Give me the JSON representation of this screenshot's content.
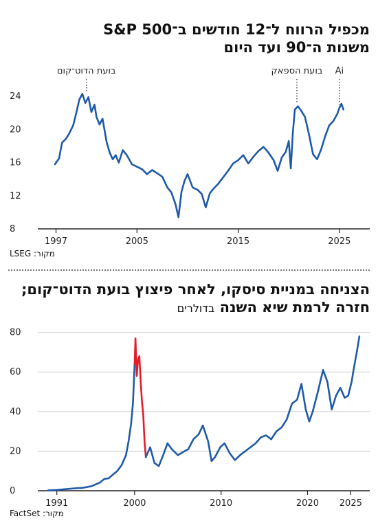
{
  "chart_data": [
    {
      "type": "line",
      "title": "מכפיל הרווח ל־12 חודשים ב־S&P 500",
      "subtitle": "משנות ה־90 ועד היום",
      "source": "מקור: LSEG",
      "x_ticks": [
        "1997",
        "2005",
        "2015",
        "2025"
      ],
      "y_ticks": [
        "8",
        "12",
        "16",
        "20",
        "24"
      ],
      "xlim": [
        1995.2,
        2028.0
      ],
      "ylim": [
        8,
        26.5
      ],
      "grid": false,
      "annotations": [
        {
          "label": "בועת הדוט־קום",
          "x": 2000.0,
          "y": 24.6
        },
        {
          "label": "בועת הספאק",
          "x": 2020.8,
          "y": 23.2
        },
        {
          "label": "Ai",
          "x": 2025.0,
          "y": 23.0
        }
      ],
      "series": [
        {
          "color": "#1f5aa6",
          "x": [
            1996.9,
            1997.3,
            1997.6,
            1998.0,
            1998.3,
            1998.7,
            1999.0,
            1999.3,
            1999.6,
            1999.9,
            2000.2,
            2000.5,
            2000.8,
            2001.0,
            2001.3,
            2001.6,
            2002.0,
            2002.3,
            2002.6,
            2002.9,
            2003.2,
            2003.6,
            2004.0,
            2004.5,
            2005.0,
            2005.5,
            2006.0,
            2006.5,
            2007.0,
            2007.5,
            2008.0,
            2008.4,
            2008.8,
            2009.1,
            2009.4,
            2009.7,
            2010.0,
            2010.5,
            2011.0,
            2011.4,
            2011.8,
            2012.2,
            2012.6,
            2013.0,
            2013.5,
            2014.0,
            2014.5,
            2015.0,
            2015.5,
            2016.0,
            2016.5,
            2017.0,
            2017.5,
            2018.0,
            2018.5,
            2018.9,
            2019.3,
            2019.7,
            2020.0,
            2020.2,
            2020.4,
            2020.6,
            2020.9,
            2021.2,
            2021.6,
            2022.0,
            2022.4,
            2022.8,
            2023.2,
            2023.6,
            2024.0,
            2024.4,
            2024.8,
            2025.0,
            2025.2,
            2025.4
          ],
          "y": [
            15.8,
            16.5,
            18.4,
            18.9,
            19.5,
            20.5,
            22.0,
            23.6,
            24.3,
            23.2,
            23.9,
            22.1,
            23.0,
            21.5,
            20.6,
            21.3,
            18.5,
            17.2,
            16.4,
            16.9,
            16.0,
            17.5,
            16.9,
            15.8,
            15.5,
            15.2,
            14.6,
            15.1,
            14.7,
            14.3,
            13.0,
            12.4,
            11.0,
            9.4,
            12.5,
            13.8,
            14.6,
            13.0,
            12.7,
            12.2,
            10.6,
            12.3,
            12.9,
            13.4,
            14.2,
            15.0,
            15.9,
            16.3,
            16.9,
            15.9,
            16.7,
            17.4,
            17.9,
            17.2,
            16.3,
            15.0,
            16.6,
            17.3,
            18.6,
            15.3,
            19.6,
            22.4,
            22.8,
            22.3,
            21.5,
            19.4,
            17.0,
            16.4,
            17.6,
            19.2,
            20.5,
            21.0,
            21.9,
            22.6,
            23.1,
            22.4
          ]
        }
      ]
    },
    {
      "type": "line",
      "title": "הצניחה במניית סיסקו, לאחר פיצוץ בועת הדוט־קום; חזרה לרמת שיא השנה",
      "unit_note": "בדולרים",
      "source": "מקור: FactSet",
      "x_ticks": [
        "1991",
        "2000",
        "2010",
        "2020",
        "2025"
      ],
      "y_ticks": [
        "0",
        "20",
        "40",
        "60",
        "80"
      ],
      "xlim": [
        1988.8,
        2027.2
      ],
      "ylim": [
        0,
        83
      ],
      "grid": true,
      "series": [
        {
          "color": "#1f5aa6",
          "x": [
            1990.0,
            1991.0,
            1992.0,
            1993.0,
            1994.0,
            1995.0,
            1996.0,
            1996.5,
            1997.0,
            1997.5,
            1998.0,
            1998.5,
            1999.0,
            1999.3,
            1999.6,
            1999.8,
            2000.0
          ],
          "y": [
            0.2,
            0.4,
            0.8,
            1.2,
            1.5,
            2.3,
            4.2,
            6.0,
            6.3,
            8.2,
            10.0,
            13.0,
            18.0,
            25.0,
            34.0,
            44.0,
            64.0
          ]
        },
        {
          "color": "#e11d2a",
          "x": [
            2000.0,
            2000.1,
            2000.25,
            2000.4,
            2000.55,
            2000.7,
            2000.85,
            2001.0,
            2001.15,
            2001.3
          ],
          "y": [
            64.0,
            77.0,
            58.0,
            66.0,
            68.0,
            55.0,
            45.0,
            38.0,
            25.0,
            17.0
          ]
        },
        {
          "color": "#1f5aa6",
          "x": [
            2001.3,
            2001.8,
            2002.3,
            2002.8,
            2003.3,
            2003.8,
            2004.3,
            2005.0,
            2005.6,
            2006.2,
            2006.8,
            2007.4,
            2007.9,
            2008.5,
            2008.9,
            2009.3,
            2009.9,
            2010.4,
            2011.0,
            2011.6,
            2012.2,
            2012.8,
            2013.4,
            2014.0,
            2014.6,
            2015.2,
            2015.8,
            2016.4,
            2017.0,
            2017.6,
            2018.2,
            2018.8,
            2019.3,
            2019.8,
            2020.2,
            2020.6,
            2021.2,
            2021.8,
            2022.3,
            2022.8,
            2023.3,
            2023.8,
            2024.3,
            2024.7,
            2025.1,
            2025.4,
            2025.7,
            2026.0
          ],
          "y": [
            17.0,
            22.0,
            14.0,
            12.5,
            18.0,
            24.0,
            21.0,
            18.0,
            19.5,
            21.0,
            26.0,
            28.5,
            33.0,
            25.0,
            15.0,
            17.0,
            22.0,
            24.0,
            19.0,
            15.5,
            18.0,
            20.0,
            22.0,
            24.0,
            27.0,
            28.0,
            26.0,
            30.0,
            32.0,
            36.0,
            44.0,
            46.0,
            54.0,
            41.0,
            35.0,
            40.0,
            50.0,
            61.0,
            55.0,
            41.0,
            48.0,
            52.0,
            47.0,
            48.0,
            55.0,
            63.0,
            70.0,
            78.0
          ]
        }
      ]
    }
  ]
}
